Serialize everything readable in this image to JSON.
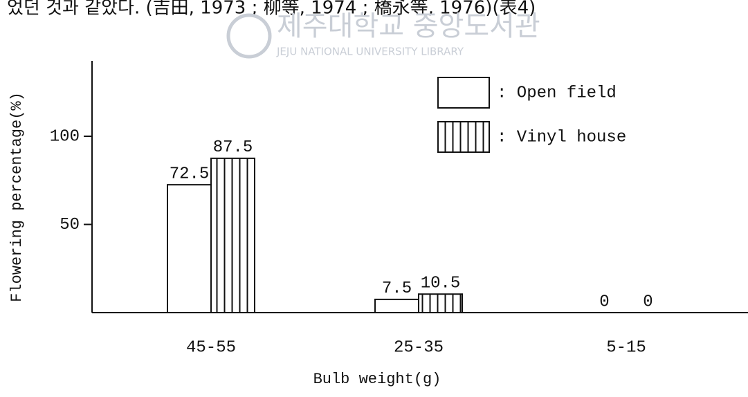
{
  "header_text": "었던 것과 같았다. (吉田, 1973 ; 柳等, 1974 ; 橋永等, 1976)(表4)",
  "watermark": {
    "title": "제주대학교 중앙도서관",
    "subtitle": "JEJU NATIONAL UNIVERSITY LIBRARY"
  },
  "chart_data": {
    "type": "bar",
    "x_label": "Bulb weight(g)",
    "y_label": "Flowering percentage(%)",
    "categories": [
      "45-55",
      "25-35",
      "5-15"
    ],
    "series": [
      {
        "name": ": Open field",
        "color": "#ffffff",
        "pattern": "none",
        "values": [
          72.5,
          7.5,
          0
        ]
      },
      {
        "name": ": Vinyl house",
        "color": "#ffffff",
        "pattern": "vertical-hatch",
        "values": [
          87.5,
          10.5,
          0
        ]
      }
    ],
    "ylim": [
      0,
      140
    ],
    "yticks": [
      50,
      100
    ],
    "grid": false
  }
}
